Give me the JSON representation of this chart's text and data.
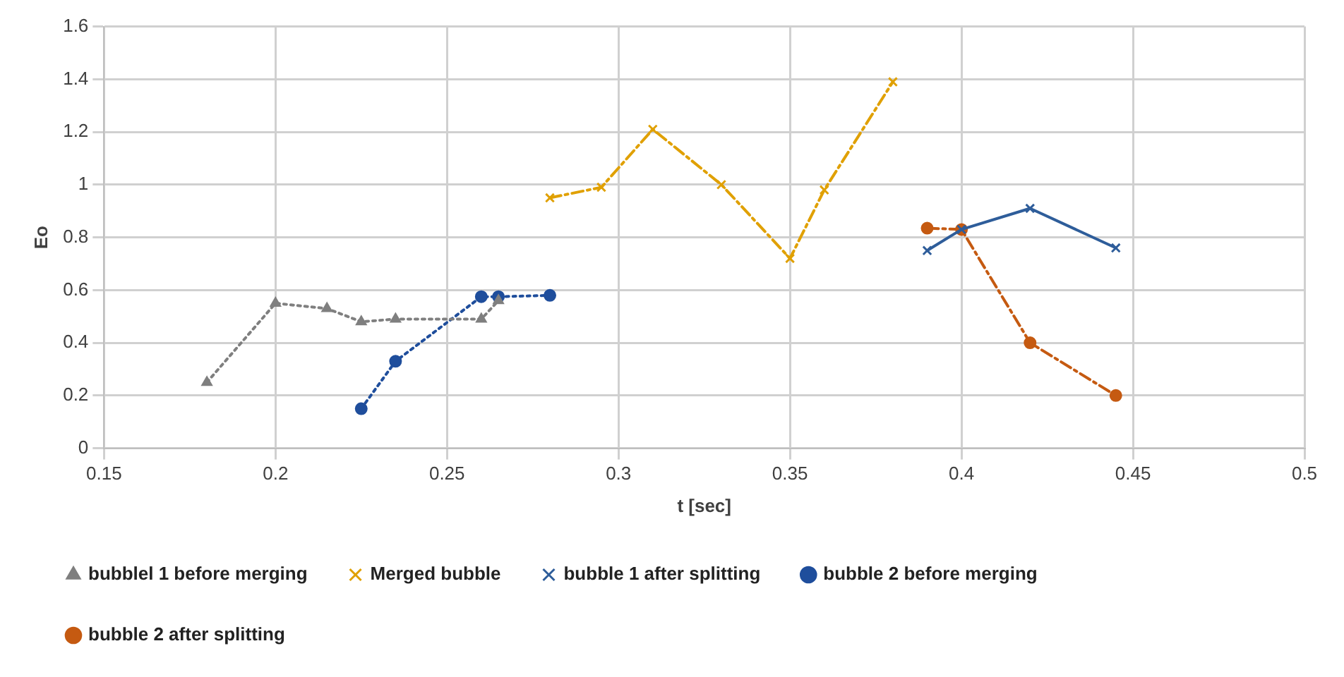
{
  "chart_data": {
    "type": "line",
    "xlabel": "t [sec]",
    "ylabel": "Eo",
    "xlim": [
      0.15,
      0.5
    ],
    "xticks": [
      0.15,
      0.2,
      0.25,
      0.3,
      0.35,
      0.4,
      0.45,
      0.5
    ],
    "ylim": [
      0,
      1.6
    ],
    "yticks": [
      0,
      0.2,
      0.4,
      0.6,
      0.8,
      1,
      1.2,
      1.4,
      1.6
    ],
    "grid": true,
    "legend": "bottom",
    "series": [
      {
        "name": "bubblel 1 before merging",
        "color": "#7f7f7f",
        "marker": "triangle",
        "line_style": "dotted",
        "x": [
          0.18,
          0.2,
          0.215,
          0.225,
          0.235,
          0.26,
          0.265
        ],
        "values": [
          0.25,
          0.55,
          0.53,
          0.48,
          0.49,
          0.49,
          0.56
        ]
      },
      {
        "name": "Merged bubble",
        "color": "#e0a000",
        "marker": "cross",
        "line_style": "dashdot",
        "x": [
          0.28,
          0.295,
          0.31,
          0.33,
          0.35,
          0.36,
          0.38
        ],
        "values": [
          0.95,
          0.99,
          1.21,
          1.0,
          0.72,
          0.98,
          1.39
        ]
      },
      {
        "name": "bubble 1 after splitting",
        "color": "#2e5d9a",
        "marker": "cross",
        "line_style": "solid",
        "x": [
          0.39,
          0.4,
          0.42,
          0.445
        ],
        "values": [
          0.75,
          0.83,
          0.91,
          0.76
        ]
      },
      {
        "name": "bubble 2 before merging",
        "color": "#1f4e9c",
        "marker": "circle",
        "line_style": "dotted",
        "x": [
          0.225,
          0.235,
          0.26,
          0.265,
          0.28
        ],
        "values": [
          0.15,
          0.33,
          0.575,
          0.575,
          0.58
        ]
      },
      {
        "name": "bubble 2 after splitting",
        "color": "#c55a11",
        "marker": "circle",
        "line_style": "dashdot",
        "x": [
          0.39,
          0.4,
          0.42,
          0.445
        ],
        "values": [
          0.835,
          0.83,
          0.4,
          0.2
        ]
      }
    ]
  }
}
